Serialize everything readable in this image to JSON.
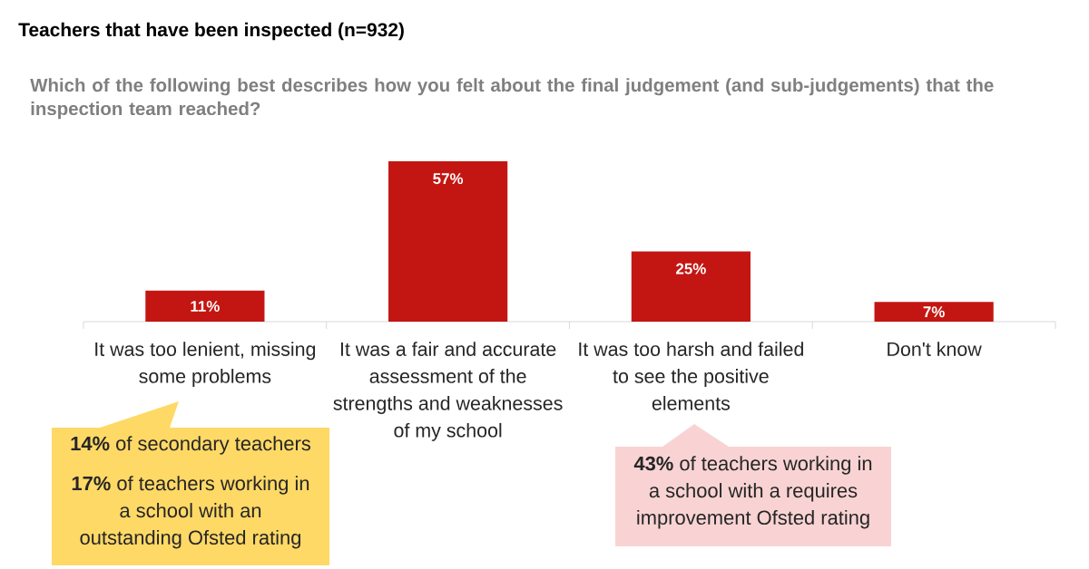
{
  "chart_data": {
    "type": "bar",
    "title": "Teachers that have been inspected (n=932)",
    "subtitle": "Which of the following best describes how you felt about the final judgement (and sub-judgements) that the inspection team reached?",
    "categories": [
      "It was too lenient, missing some problems",
      "It was a fair and accurate assessment of the strengths and weaknesses of my school",
      "It was too harsh and failed to see the positive elements",
      "Don't know"
    ],
    "values": [
      11,
      57,
      25,
      7
    ],
    "color": "#c31612",
    "value_labels": [
      "11%",
      "57%",
      "25%",
      "7%"
    ],
    "tick_labels": "x",
    "annotations": [
      "**14%** of secondary teachers",
      "**17%** of teachers working in a school with an outstanding Ofsted rating",
      "**43%** of teachers working in a school with a requires improvement Ofsted rating"
    ]
  }
}
